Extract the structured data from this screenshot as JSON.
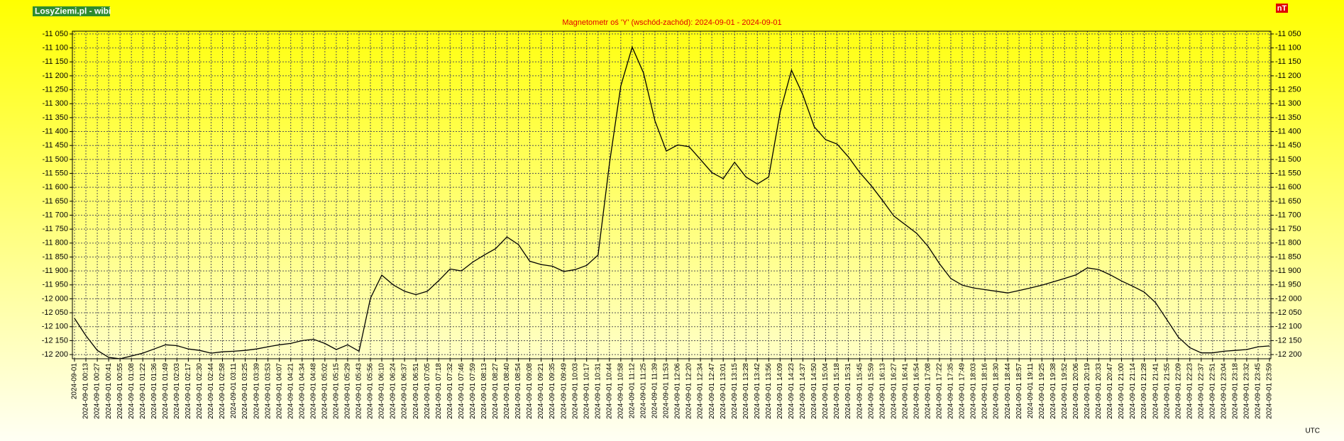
{
  "chart_data": {
    "type": "line",
    "brand": "LosyZiemi.pl - wibi",
    "title": "Magnetometr oś 'Y' (wschód-zachód): 2024-09-01 - 2024-09-01",
    "unit_label": "nT",
    "time_label": "UTC",
    "color": "#000000",
    "grid": true,
    "mirror_y_axis": true,
    "ylim": [
      -12215,
      -11040
    ],
    "yticks": [
      {
        "value": -11050,
        "label": "-11 050"
      },
      {
        "value": -11100,
        "label": "-11 100"
      },
      {
        "value": -11150,
        "label": "-11 150"
      },
      {
        "value": -11200,
        "label": "-11 200"
      },
      {
        "value": -11250,
        "label": "-11 250"
      },
      {
        "value": -11300,
        "label": "-11 300"
      },
      {
        "value": -11350,
        "label": "-11 350"
      },
      {
        "value": -11400,
        "label": "-11 400"
      },
      {
        "value": -11450,
        "label": "-11 450"
      },
      {
        "value": -11500,
        "label": "-11 500"
      },
      {
        "value": -11550,
        "label": "-11 550"
      },
      {
        "value": -11600,
        "label": "-11 600"
      },
      {
        "value": -11650,
        "label": "-11 650"
      },
      {
        "value": -11700,
        "label": "-11 700"
      },
      {
        "value": -11750,
        "label": "-11 750"
      },
      {
        "value": -11800,
        "label": "-11 800"
      },
      {
        "value": -11850,
        "label": "-11 850"
      },
      {
        "value": -11900,
        "label": "-11 900"
      },
      {
        "value": -11950,
        "label": "-11 950"
      },
      {
        "value": -12000,
        "label": "-12 000"
      },
      {
        "value": -12050,
        "label": "-12 050"
      },
      {
        "value": -12100,
        "label": "-12 100"
      },
      {
        "value": -12150,
        "label": "-12 150"
      },
      {
        "value": -12200,
        "label": "-12 200"
      }
    ],
    "categories": [
      "2024-09-01",
      "2024-09-01 00:13",
      "2024-09-01 00:27",
      "2024-09-01 00:41",
      "2024-09-01 00:55",
      "2024-09-01 01:08",
      "2024-09-01 01:22",
      "2024-09-01 01:36",
      "2024-09-01 01:49",
      "2024-09-01 02:03",
      "2024-09-01 02:17",
      "2024-09-01 02:30",
      "2024-09-01 02:44",
      "2024-09-01 02:58",
      "2024-09-01 03:11",
      "2024-09-01 03:25",
      "2024-09-01 03:39",
      "2024-09-01 03:53",
      "2024-09-01 04:07",
      "2024-09-01 04:21",
      "2024-09-01 04:34",
      "2024-09-01 04:48",
      "2024-09-01 05:02",
      "2024-09-01 05:15",
      "2024-09-01 05:29",
      "2024-09-01 05:43",
      "2024-09-01 05:56",
      "2024-09-01 06:10",
      "2024-09-01 06:24",
      "2024-09-01 06:37",
      "2024-09-01 06:51",
      "2024-09-01 07:05",
      "2024-09-01 07:18",
      "2024-09-01 07:32",
      "2024-09-01 07:46",
      "2024-09-01 07:59",
      "2024-09-01 08:13",
      "2024-09-01 08:27",
      "2024-09-01 08:40",
      "2024-09-01 08:54",
      "2024-09-01 09:08",
      "2024-09-01 09:21",
      "2024-09-01 09:35",
      "2024-09-01 09:49",
      "2024-09-01 10:03",
      "2024-09-01 10:17",
      "2024-09-01 10:31",
      "2024-09-01 10:44",
      "2024-09-01 10:58",
      "2024-09-01 11:12",
      "2024-09-01 11:25",
      "2024-09-01 11:39",
      "2024-09-01 11:53",
      "2024-09-01 12:06",
      "2024-09-01 12:20",
      "2024-09-01 12:34",
      "2024-09-01 12:47",
      "2024-09-01 13:01",
      "2024-09-01 13:15",
      "2024-09-01 13:28",
      "2024-09-01 13:42",
      "2024-09-01 13:56",
      "2024-09-01 14:09",
      "2024-09-01 14:23",
      "2024-09-01 14:37",
      "2024-09-01 14:50",
      "2024-09-01 15:04",
      "2024-09-01 15:18",
      "2024-09-01 15:31",
      "2024-09-01 15:45",
      "2024-09-01 15:59",
      "2024-09-01 16:13",
      "2024-09-01 16:27",
      "2024-09-01 16:41",
      "2024-09-01 16:54",
      "2024-09-01 17:08",
      "2024-09-01 17:22",
      "2024-09-01 17:35",
      "2024-09-01 17:49",
      "2024-09-01 18:03",
      "2024-09-01 18:16",
      "2024-09-01 18:30",
      "2024-09-01 18:44",
      "2024-09-01 18:57",
      "2024-09-01 19:11",
      "2024-09-01 19:25",
      "2024-09-01 19:38",
      "2024-09-01 19:52",
      "2024-09-01 20:06",
      "2024-09-01 20:19",
      "2024-09-01 20:33",
      "2024-09-01 20:47",
      "2024-09-01 21:00",
      "2024-09-01 21:14",
      "2024-09-01 21:28",
      "2024-09-01 21:41",
      "2024-09-01 21:55",
      "2024-09-01 22:09",
      "2024-09-01 22:23",
      "2024-09-01 22:37",
      "2024-09-01 22:51",
      "2024-09-01 23:04",
      "2024-09-01 23:18",
      "2024-09-01 23:32",
      "2024-09-01 23:45",
      "2024-09-01 23:59"
    ],
    "values": [
      -12070,
      -12132,
      -12185,
      -12210,
      -12215,
      -12205,
      -12195,
      -12180,
      -12165,
      -12168,
      -12180,
      -12185,
      -12195,
      -12190,
      -12188,
      -12185,
      -12180,
      -12172,
      -12165,
      -12160,
      -12150,
      -12145,
      -12160,
      -12182,
      -12165,
      -12188,
      -11998,
      -11915,
      -11950,
      -11973,
      -11985,
      -11973,
      -11935,
      -11893,
      -11900,
      -11868,
      -11843,
      -11820,
      -11778,
      -11805,
      -11865,
      -11877,
      -11883,
      -11902,
      -11895,
      -11880,
      -11843,
      -11516,
      -11237,
      -11097,
      -11190,
      -11361,
      -11470,
      -11448,
      -11454,
      -11500,
      -11547,
      -11569,
      -11510,
      -11563,
      -11588,
      -11563,
      -11330,
      -11180,
      -11268,
      -11383,
      -11429,
      -11445,
      -11491,
      -11547,
      -11594,
      -11647,
      -11703,
      -11734,
      -11765,
      -11812,
      -11874,
      -11927,
      -11951,
      -11961,
      -11967,
      -11973,
      -11979,
      -11970,
      -11961,
      -11951,
      -11939,
      -11927,
      -11914,
      -11889,
      -11895,
      -11914,
      -11936,
      -11955,
      -11976,
      -12014,
      -12076,
      -12138,
      -12175,
      -12194,
      -12194,
      -12188,
      -12185,
      -12182,
      -12172,
      -12169
    ]
  }
}
